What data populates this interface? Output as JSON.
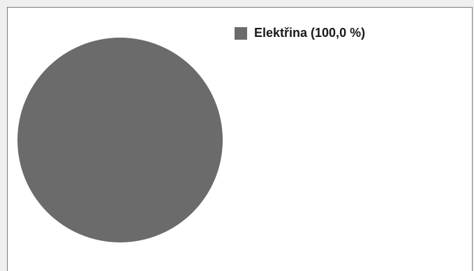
{
  "chart_data": {
    "type": "pie",
    "slices": [
      {
        "label": "Elektřina",
        "value": 100.0,
        "color": "#6b6b6b"
      }
    ],
    "legend": {
      "placement": "top-right",
      "entries": [
        "Elektřina (100,0 %)"
      ]
    }
  }
}
